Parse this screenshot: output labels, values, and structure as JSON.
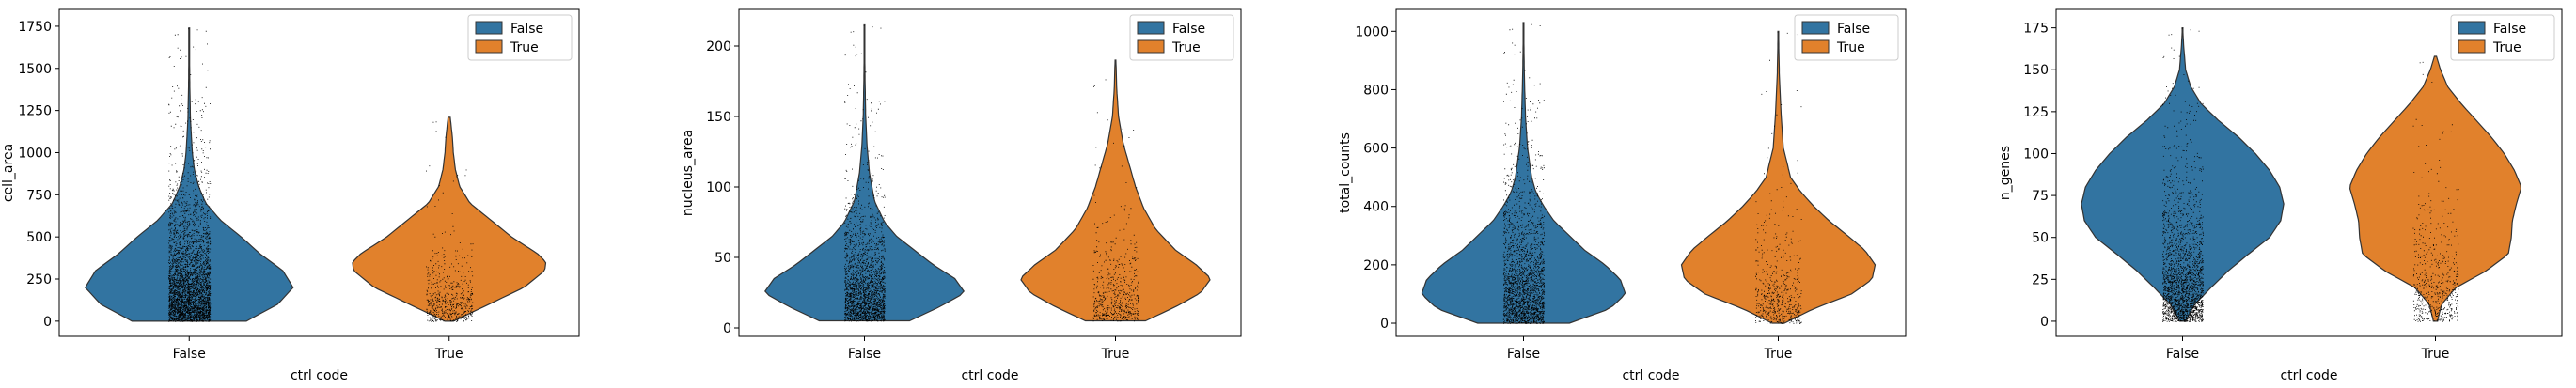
{
  "colors": {
    "false": "#3274a1",
    "true": "#e1812c",
    "outline": "#333333",
    "dots": "#000000"
  },
  "legend": {
    "items": [
      "False",
      "True"
    ],
    "placement": "top-right"
  },
  "chart_data": [
    {
      "type": "violin",
      "xlabel": "ctrl code",
      "ylabel": "cell_area",
      "categories": [
        "False",
        "True"
      ],
      "ylim": [
        -90,
        1850
      ],
      "yticks": [
        0,
        250,
        500,
        750,
        1000,
        1250,
        1500,
        1750
      ],
      "series": [
        {
          "name": "False",
          "min": 0,
          "max": 1740,
          "density": [
            [
              0,
              0.55
            ],
            [
              100,
              0.85
            ],
            [
              200,
              1.0
            ],
            [
              300,
              0.9
            ],
            [
              400,
              0.68
            ],
            [
              500,
              0.5
            ],
            [
              600,
              0.3
            ],
            [
              700,
              0.16
            ],
            [
              800,
              0.09
            ],
            [
              900,
              0.05
            ],
            [
              1000,
              0.03
            ],
            [
              1200,
              0.012
            ],
            [
              1400,
              0.006
            ],
            [
              1600,
              0.003
            ],
            [
              1740,
              0.001
            ]
          ],
          "points_upper": 1350
        },
        {
          "name": "True",
          "min": 0,
          "max": 1210,
          "density": [
            [
              0,
              0.04
            ],
            [
              100,
              0.38
            ],
            [
              200,
              0.72
            ],
            [
              300,
              0.92
            ],
            [
              350,
              0.93
            ],
            [
              400,
              0.85
            ],
            [
              500,
              0.6
            ],
            [
              600,
              0.4
            ],
            [
              700,
              0.2
            ],
            [
              800,
              0.1
            ],
            [
              900,
              0.06
            ],
            [
              1000,
              0.04
            ],
            [
              1100,
              0.03
            ],
            [
              1210,
              0.01
            ]
          ],
          "points_upper": 760
        }
      ]
    },
    {
      "type": "violin",
      "xlabel": "ctrl code",
      "ylabel": "nucleus_area",
      "categories": [
        "False",
        "True"
      ],
      "ylim": [
        -6,
        226
      ],
      "yticks": [
        0,
        50,
        100,
        150,
        200
      ],
      "series": [
        {
          "name": "False",
          "min": 5,
          "max": 215,
          "density": [
            [
              5,
              0.45
            ],
            [
              15,
              0.75
            ],
            [
              25,
              1.0
            ],
            [
              35,
              0.9
            ],
            [
              45,
              0.68
            ],
            [
              55,
              0.5
            ],
            [
              65,
              0.32
            ],
            [
              75,
              0.2
            ],
            [
              90,
              0.1
            ],
            [
              110,
              0.05
            ],
            [
              130,
              0.025
            ],
            [
              150,
              0.012
            ],
            [
              180,
              0.005
            ],
            [
              215,
              0.001
            ]
          ],
          "points_upper": 150
        },
        {
          "name": "True",
          "min": 5,
          "max": 190,
          "density": [
            [
              5,
              0.3
            ],
            [
              15,
              0.6
            ],
            [
              25,
              0.85
            ],
            [
              35,
              0.95
            ],
            [
              45,
              0.8
            ],
            [
              55,
              0.6
            ],
            [
              70,
              0.4
            ],
            [
              85,
              0.28
            ],
            [
              100,
              0.2
            ],
            [
              115,
              0.14
            ],
            [
              130,
              0.08
            ],
            [
              150,
              0.03
            ],
            [
              170,
              0.012
            ],
            [
              190,
              0.004
            ]
          ],
          "points_upper": 120
        }
      ]
    },
    {
      "type": "violin",
      "xlabel": "ctrl code",
      "ylabel": "total_counts",
      "categories": [
        "False",
        "True"
      ],
      "ylim": [
        -45,
        1075
      ],
      "yticks": [
        0,
        200,
        400,
        600,
        800,
        1000
      ],
      "series": [
        {
          "name": "False",
          "min": 0,
          "max": 1030,
          "density": [
            [
              0,
              0.45
            ],
            [
              50,
              0.85
            ],
            [
              100,
              1.0
            ],
            [
              150,
              0.95
            ],
            [
              200,
              0.8
            ],
            [
              250,
              0.6
            ],
            [
              300,
              0.45
            ],
            [
              350,
              0.3
            ],
            [
              400,
              0.2
            ],
            [
              450,
              0.12
            ],
            [
              500,
              0.08
            ],
            [
              600,
              0.04
            ],
            [
              700,
              0.02
            ],
            [
              850,
              0.008
            ],
            [
              1030,
              0.001
            ]
          ],
          "points_upper": 880
        },
        {
          "name": "True",
          "min": 0,
          "max": 1000,
          "density": [
            [
              0,
              0.06
            ],
            [
              50,
              0.35
            ],
            [
              100,
              0.72
            ],
            [
              150,
              0.92
            ],
            [
              200,
              0.95
            ],
            [
              250,
              0.85
            ],
            [
              300,
              0.68
            ],
            [
              350,
              0.5
            ],
            [
              400,
              0.35
            ],
            [
              450,
              0.22
            ],
            [
              500,
              0.12
            ],
            [
              600,
              0.05
            ],
            [
              700,
              0.03
            ],
            [
              850,
              0.01
            ],
            [
              1000,
              0.002
            ]
          ],
          "points_upper": 600
        }
      ]
    },
    {
      "type": "violin",
      "xlabel": "ctrl code",
      "ylabel": "n_genes",
      "categories": [
        "False",
        "True"
      ],
      "ylim": [
        -9,
        186
      ],
      "yticks": [
        0,
        25,
        50,
        75,
        100,
        125,
        150,
        175
      ],
      "series": [
        {
          "name": "False",
          "min": 0,
          "max": 175,
          "density": [
            [
              0,
              0.03
            ],
            [
              10,
              0.12
            ],
            [
              20,
              0.28
            ],
            [
              30,
              0.45
            ],
            [
              40,
              0.65
            ],
            [
              50,
              0.86
            ],
            [
              60,
              0.97
            ],
            [
              70,
              1.0
            ],
            [
              80,
              0.96
            ],
            [
              90,
              0.86
            ],
            [
              100,
              0.72
            ],
            [
              110,
              0.55
            ],
            [
              120,
              0.35
            ],
            [
              130,
              0.18
            ],
            [
              140,
              0.08
            ],
            [
              150,
              0.03
            ],
            [
              165,
              0.01
            ],
            [
              175,
              0.002
            ]
          ],
          "points_upper": 150
        },
        {
          "name": "True",
          "min": 0,
          "max": 158,
          "density": [
            [
              0,
              0.02
            ],
            [
              10,
              0.06
            ],
            [
              20,
              0.2
            ],
            [
              30,
              0.5
            ],
            [
              40,
              0.72
            ],
            [
              50,
              0.75
            ],
            [
              60,
              0.76
            ],
            [
              70,
              0.8
            ],
            [
              80,
              0.85
            ],
            [
              90,
              0.78
            ],
            [
              100,
              0.68
            ],
            [
              110,
              0.55
            ],
            [
              120,
              0.4
            ],
            [
              130,
              0.25
            ],
            [
              140,
              0.12
            ],
            [
              150,
              0.05
            ],
            [
              158,
              0.01
            ]
          ],
          "points_upper": 130
        }
      ]
    }
  ]
}
